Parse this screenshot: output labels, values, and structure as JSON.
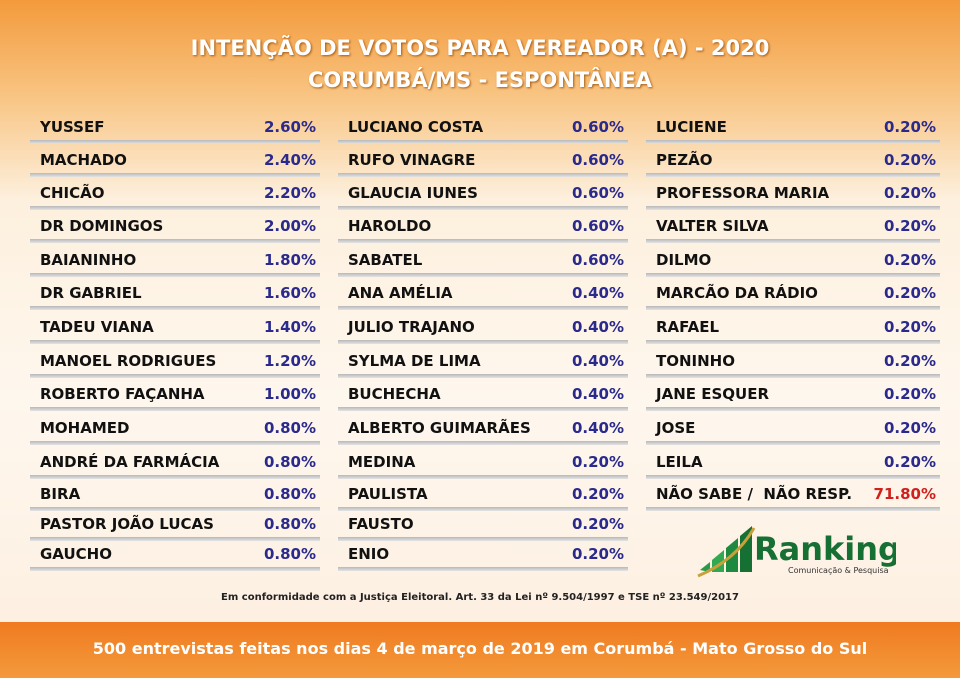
{
  "header": {
    "title": "INTENÇÃO DE VOTOS PARA VEREADOR (A) - 2020",
    "subtitle": "CORUMBÁ/MS - ESPONTÂNEA"
  },
  "columns": [
    [
      {
        "name": "YUSSEF",
        "value": "2.60%"
      },
      {
        "name": "MACHADO",
        "value": "2.40%"
      },
      {
        "name": "CHICÃO",
        "value": "2.20%"
      },
      {
        "name": "DR DOMINGOS",
        "value": "2.00%"
      },
      {
        "name": "BAIANINHO",
        "value": "1.80%"
      },
      {
        "name": "DR GABRIEL",
        "value": "1.60%"
      },
      {
        "name": "TADEU VIANA",
        "value": "1.40%"
      },
      {
        "name": "MANOEL RODRIGUES",
        "value": "1.20%"
      },
      {
        "name": "ROBERTO FAÇANHA",
        "value": "1.00%"
      },
      {
        "name": "MOHAMED",
        "value": "0.80%"
      },
      {
        "name": "ANDRÉ DA FARMÁCIA",
        "value": "0.80%"
      },
      {
        "name": "BIRA",
        "value": "0.80%"
      },
      {
        "name": "PASTOR JOÃO LUCAS",
        "value": "0.80%"
      },
      {
        "name": "GAUCHO",
        "value": "0.80%"
      }
    ],
    [
      {
        "name": "LUCIANO COSTA",
        "value": "0.60%"
      },
      {
        "name": "RUFO VINAGRE",
        "value": "0.60%"
      },
      {
        "name": "GLAUCIA IUNES",
        "value": "0.60%"
      },
      {
        "name": "HAROLDO",
        "value": "0.60%"
      },
      {
        "name": "SABATEL",
        "value": "0.60%"
      },
      {
        "name": "ANA AMÉLIA",
        "value": "0.40%"
      },
      {
        "name": "JULIO TRAJANO",
        "value": "0.40%"
      },
      {
        "name": "SYLMA DE LIMA",
        "value": "0.40%"
      },
      {
        "name": "BUCHECHA",
        "value": "0.40%"
      },
      {
        "name": "ALBERTO GUIMARÃES",
        "value": "0.40%"
      },
      {
        "name": "MEDINA",
        "value": "0.20%"
      },
      {
        "name": "PAULISTA",
        "value": "0.20%"
      },
      {
        "name": "FAUSTO",
        "value": "0.20%"
      },
      {
        "name": "ENIO",
        "value": "0.20%"
      }
    ],
    [
      {
        "name": "LUCIENE",
        "value": "0.20%"
      },
      {
        "name": "PEZÃO",
        "value": "0.20%"
      },
      {
        "name": "PROFESSORA MARIA",
        "value": "0.20%"
      },
      {
        "name": "VALTER SILVA",
        "value": "0.20%"
      },
      {
        "name": "DILMO",
        "value": "0.20%"
      },
      {
        "name": "MARCÃO DA RÁDIO",
        "value": "0.20%"
      },
      {
        "name": "RAFAEL",
        "value": "0.20%"
      },
      {
        "name": "TONINHO",
        "value": "0.20%"
      },
      {
        "name": "JANE ESQUER",
        "value": "0.20%"
      },
      {
        "name": "JOSE",
        "value": "0.20%"
      },
      {
        "name": "LEILA",
        "value": "0.20%"
      },
      {
        "name": "NÃO SABE /  NÃO RESP.",
        "value": "71.80%",
        "color": "#d0201c"
      }
    ]
  ],
  "logo": {
    "name": "Ranking",
    "tagline": "Comunicação & Pesquisa"
  },
  "note": "Em conformidade com a Justiça Eleitoral. Art. 33 da Lei nº 9.504/1997 e TSE nº 23.549/2017",
  "footer": "500 entrevistas feitas nos dias 4 de março de 2019 em Corumbá - Mato Grosso do Sul"
}
